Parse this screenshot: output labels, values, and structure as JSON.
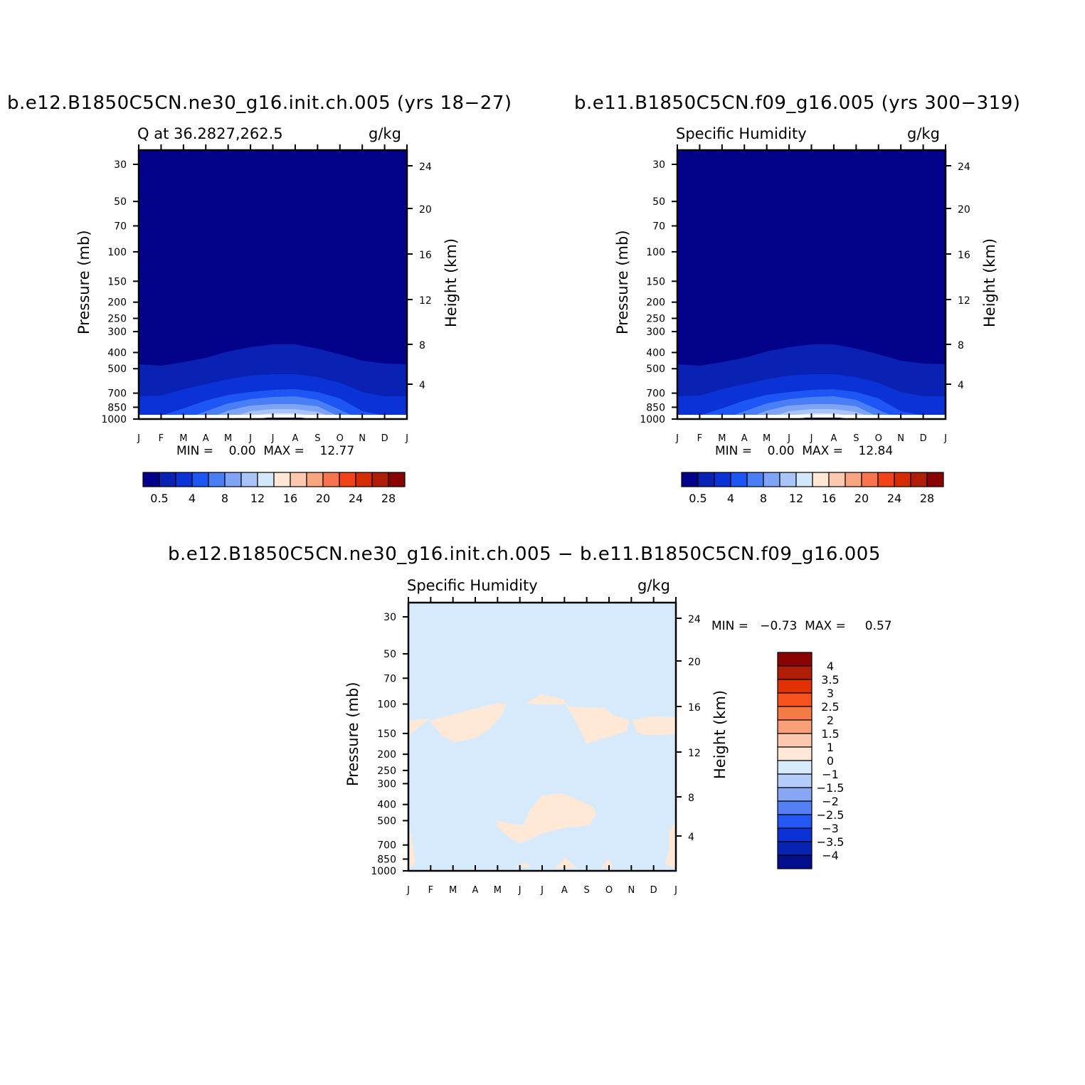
{
  "panels": [
    {
      "id": "panel-a",
      "title": "b.e12.B1850C5CN.ne30_g16.init.ch.005 (yrs 18−27)",
      "left_label": "Q at 36.2827,262.5",
      "right_label": "g/kg",
      "min_max_text": "MIN =    0.00  MAX =    12.77",
      "ylabel": "Pressure (mb)",
      "ylabel_right": "Height (km)",
      "colorbar_labels": [
        "0.5",
        "4",
        "8",
        "12",
        "16",
        "20",
        "24",
        "28"
      ]
    },
    {
      "id": "panel-b",
      "title": "b.e11.B1850C5CN.f09_g16.005 (yrs 300−319)",
      "left_label": "Specific Humidity",
      "right_label": "g/kg",
      "min_max_text": "MIN =    0.00  MAX =    12.84",
      "ylabel": "Pressure (mb)",
      "ylabel_right": "Height (km)",
      "colorbar_labels": [
        "0.5",
        "4",
        "8",
        "12",
        "16",
        "20",
        "24",
        "28"
      ]
    },
    {
      "id": "panel-diff",
      "title": "b.e12.B1850C5CN.ne30_g16.init.ch.005 − b.e11.B1850C5CN.f09_g16.005",
      "left_label": "Specific Humidity",
      "right_label": "g/kg",
      "min_max_text": "MIN =   −0.73  MAX =     0.57",
      "ylabel": "Pressure (mb)",
      "ylabel_right": "Height (km)",
      "colorbar_labels": [
        "4",
        "3.5",
        "3",
        "2.5",
        "2",
        "1.5",
        "1",
        "0",
        "−1",
        "−1.5",
        "−2",
        "−2.5",
        "−3",
        "−3.5",
        "−4"
      ]
    }
  ],
  "chart_data": [
    {
      "type": "heatmap",
      "title": "b.e12.B1850C5CN.ne30_g16.init.ch.005 (yrs 18−27)",
      "subtitle": "Q at 36.2827,262.5",
      "units": "g/kg",
      "xlabel": "",
      "ylabel": "Pressure (mb)",
      "ylabel_right": "Height (km)",
      "x_ticks": [
        "J",
        "F",
        "M",
        "A",
        "M",
        "J",
        "J",
        "A",
        "S",
        "O",
        "N",
        "D",
        "J"
      ],
      "y_ticks": [
        30,
        50,
        70,
        100,
        150,
        200,
        250,
        300,
        400,
        500,
        700,
        850,
        1000
      ],
      "y_ticks_right": [
        24,
        20,
        16,
        12,
        8,
        4
      ],
      "yscale": "log",
      "y_inverted": true,
      "contour_levels": [
        0.5,
        2,
        4,
        6,
        8,
        10,
        12,
        14,
        16,
        18,
        20,
        22,
        24,
        26,
        28
      ],
      "min": 0.0,
      "max": 12.77
    },
    {
      "type": "heatmap",
      "title": "b.e11.B1850C5CN.f09_g16.005 (yrs 300−319)",
      "subtitle": "Specific Humidity",
      "units": "g/kg",
      "xlabel": "",
      "ylabel": "Pressure (mb)",
      "ylabel_right": "Height (km)",
      "x_ticks": [
        "J",
        "F",
        "M",
        "A",
        "M",
        "J",
        "J",
        "A",
        "S",
        "O",
        "N",
        "D",
        "J"
      ],
      "y_ticks": [
        30,
        50,
        70,
        100,
        150,
        200,
        250,
        300,
        400,
        500,
        700,
        850,
        1000
      ],
      "y_ticks_right": [
        24,
        20,
        16,
        12,
        8,
        4
      ],
      "yscale": "log",
      "y_inverted": true,
      "contour_levels": [
        0.5,
        2,
        4,
        6,
        8,
        10,
        12,
        14,
        16,
        18,
        20,
        22,
        24,
        26,
        28
      ],
      "min": 0.0,
      "max": 12.84
    },
    {
      "type": "heatmap",
      "title": "b.e12.B1850C5CN.ne30_g16.init.ch.005 − b.e11.B1850C5CN.f09_g16.005",
      "subtitle": "Specific Humidity",
      "units": "g/kg",
      "xlabel": "",
      "ylabel": "Pressure (mb)",
      "ylabel_right": "Height (km)",
      "x_ticks": [
        "J",
        "F",
        "M",
        "A",
        "M",
        "J",
        "J",
        "A",
        "S",
        "O",
        "N",
        "D",
        "J"
      ],
      "y_ticks": [
        30,
        50,
        70,
        100,
        150,
        200,
        250,
        300,
        400,
        500,
        700,
        850,
        1000
      ],
      "y_ticks_right": [
        24,
        20,
        16,
        12,
        8,
        4
      ],
      "yscale": "log",
      "y_inverted": true,
      "contour_levels": [
        -4,
        -3.5,
        -3,
        -2.5,
        -2,
        -1.5,
        -1,
        0,
        1,
        1.5,
        2,
        2.5,
        3,
        3.5,
        4
      ],
      "min": -0.73,
      "max": 0.57
    }
  ],
  "colors": {
    "seq_scale": [
      "#02028a",
      "#0a22b4",
      "#0a32d6",
      "#1e55f5",
      "#4a7ef5",
      "#7fa4f5",
      "#a9c4f8",
      "#d3e6fa",
      "#ffe6d5",
      "#fcc8b0",
      "#f9a481",
      "#f7744f",
      "#f24318",
      "#d42c05",
      "#b01d06",
      "#8a0303"
    ],
    "diff_colorbar_top_to_bottom": [
      "#8a0303",
      "#b01d06",
      "#e03205",
      "#f7511e",
      "#f57a45",
      "#f9a07a",
      "#fcc8b0",
      "#ffe8d6",
      "#d6eafc",
      "#b4ccf9",
      "#87a7f4",
      "#557ff5",
      "#2458f5",
      "#0a32d6",
      "#0822b2",
      "#030e8c"
    ],
    "diff_background": "#d6eafc",
    "diff_positive": "#ffe8d6"
  }
}
